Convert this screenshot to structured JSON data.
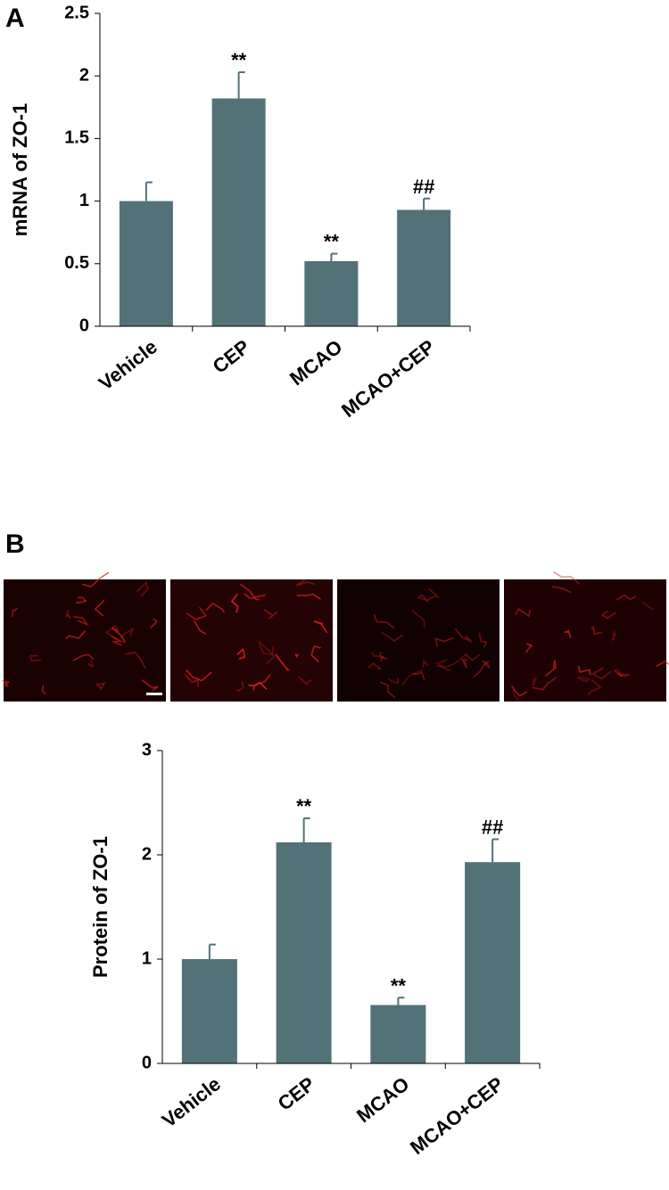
{
  "chart_data": [
    {
      "type": "bar",
      "panel_label": "A",
      "y_label": "mRNA of ZO-1",
      "categories": [
        "Vehicle",
        "CEP",
        "MCAO",
        "MCAO+CEP"
      ],
      "values": [
        1.0,
        1.82,
        0.52,
        0.93
      ],
      "errors": [
        0.15,
        0.21,
        0.06,
        0.09
      ],
      "annotations": [
        null,
        "**",
        "**",
        "##"
      ],
      "color": "#527277",
      "ylim": [
        0,
        2.5
      ],
      "yticks": [
        0,
        0.5,
        1,
        1.5,
        2,
        2.5
      ]
    },
    {
      "type": "bar",
      "panel_label": "B",
      "y_label": "Protein of ZO-1",
      "categories": [
        "Vehicle",
        "CEP",
        "MCAO",
        "MCAO+CEP"
      ],
      "values": [
        1.0,
        2.12,
        0.56,
        1.93
      ],
      "errors": [
        0.14,
        0.23,
        0.07,
        0.22
      ],
      "annotations": [
        null,
        "**",
        "**",
        "##"
      ],
      "color": "#527277",
      "ylim": [
        0,
        3
      ],
      "yticks": [
        0,
        1,
        2,
        3
      ]
    }
  ]
}
